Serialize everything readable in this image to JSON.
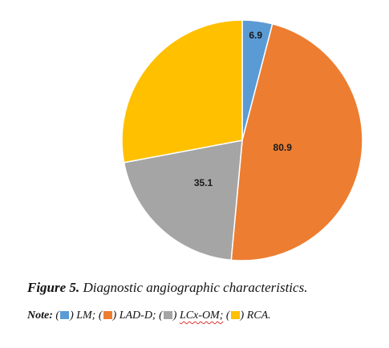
{
  "chart_data": {
    "type": "pie",
    "labels": [
      "LM",
      "LAD-D",
      "LCx-OM",
      "RCA"
    ],
    "values": [
      6.9,
      80.9,
      35.1,
      47.7
    ],
    "value_labels": [
      "6.9",
      "80.9",
      "35.1",
      ""
    ],
    "colors": [
      "#5B9BD5",
      "#ED7D31",
      "#A5A5A5",
      "#FFC000"
    ],
    "start_angle_deg": 0,
    "direction": "clockwise"
  },
  "caption": {
    "figure_label": "Figure 5.",
    "text": "Diagnostic angiographic characteristics."
  },
  "note": {
    "label": "Note:",
    "items": [
      {
        "name": "LM;",
        "color": "#5B9BD5"
      },
      {
        "name": "LAD-D;",
        "color": "#ED7D31"
      },
      {
        "name": "LCx-OM;",
        "color": "#A5A5A5"
      },
      {
        "name": "RCA.",
        "color": "#FFC000"
      }
    ]
  }
}
